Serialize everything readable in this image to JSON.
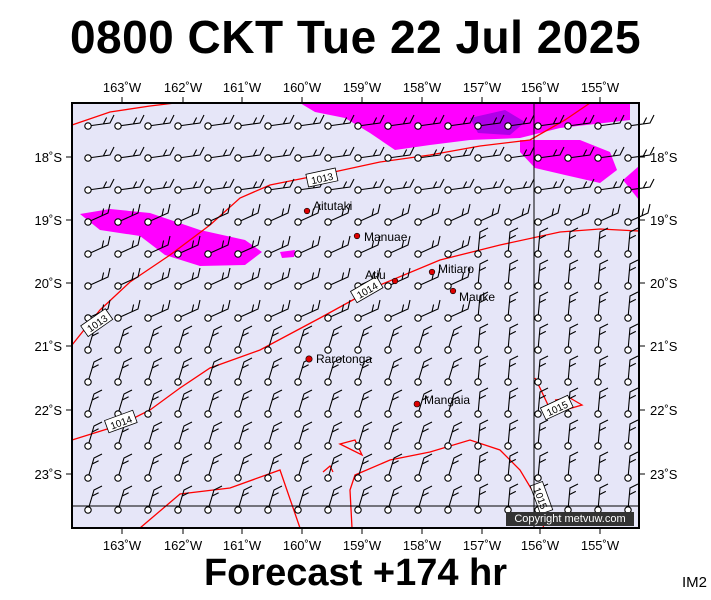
{
  "title": "0800 CKT Tue 22 Jul 2025",
  "footer": "Forecast +174 hr",
  "image_code": "IM2",
  "copyright": "Copyright metvuw.com",
  "colors": {
    "land_bg": "#e6e6f8",
    "precip": "#ff00ff",
    "precip_heavy": "#b000e8",
    "isobar": "#ff0000",
    "frame": "#000000"
  },
  "lon_labels": [
    "163˚W",
    "162˚W",
    "161˚W",
    "160˚W",
    "159˚W",
    "158˚W",
    "157˚W",
    "156˚W",
    "155˚W"
  ],
  "lat_labels": [
    "18˚S",
    "19˚S",
    "20˚S",
    "21˚S",
    "22˚S",
    "23˚S"
  ],
  "isobar_labels": [
    "1013",
    "1013",
    "1014",
    "1014",
    "1015",
    "1015"
  ],
  "islands": [
    {
      "name": "Aitutaki"
    },
    {
      "name": "Manuae"
    },
    {
      "name": "Atiu"
    },
    {
      "name": "Mitiaro"
    },
    {
      "name": "Mauke"
    },
    {
      "name": "Rarotonga"
    },
    {
      "name": "Mangaia"
    }
  ]
}
